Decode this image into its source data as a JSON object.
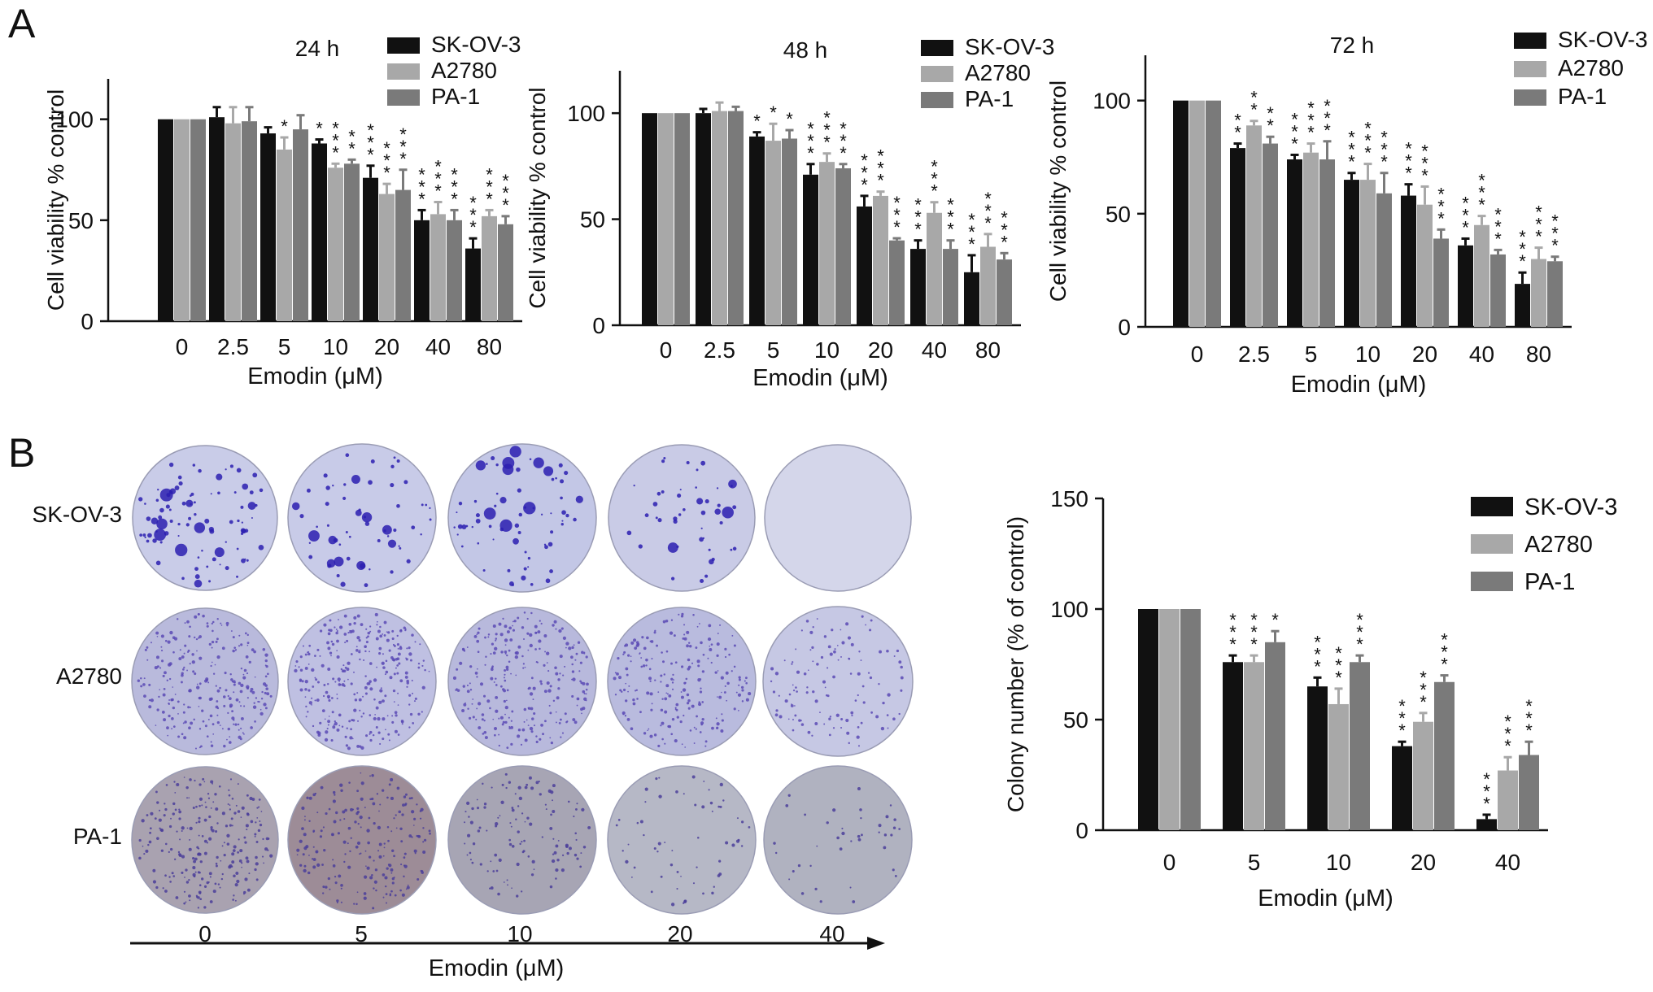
{
  "panels": {
    "a": "A",
    "b": "B"
  },
  "legend": [
    "SK-OV-3",
    "A2780",
    "PA-1"
  ],
  "colors": {
    "SK-OV-3": "#111111",
    "A2780": "#a8a8a8",
    "PA-1": "#7a7a7a"
  },
  "chart_data": [
    {
      "type": "bar",
      "title": "24 h",
      "ylabel": "Cell viability % control",
      "xlabel": "Emodin (μM)",
      "ylim": [
        0,
        120
      ],
      "yticks": [
        0,
        50,
        100
      ],
      "categories": [
        "0",
        "2.5",
        "5",
        "10",
        "20",
        "40",
        "80"
      ],
      "series": [
        {
          "name": "SK-OV-3",
          "values": [
            100,
            101,
            93,
            88,
            71,
            50,
            36
          ],
          "errors": [
            0,
            5,
            3,
            2,
            6,
            5,
            5
          ],
          "stars": [
            "",
            "",
            "",
            "*",
            "***",
            "***",
            "***"
          ]
        },
        {
          "name": "A2780",
          "values": [
            100,
            98,
            85,
            76,
            63,
            53,
            52
          ],
          "errors": [
            0,
            8,
            6,
            2,
            5,
            6,
            3
          ],
          "stars": [
            "",
            "",
            "*",
            "***",
            "***",
            "***",
            "***"
          ]
        },
        {
          "name": "PA-1",
          "values": [
            100,
            99,
            95,
            78,
            65,
            50,
            48
          ],
          "errors": [
            0,
            7,
            7,
            2,
            10,
            5,
            4
          ],
          "stars": [
            "",
            "",
            "",
            "**",
            "***",
            "***",
            "***"
          ]
        }
      ],
      "legend": "top-right"
    },
    {
      "type": "bar",
      "title": "48 h",
      "ylabel": "Cell viability % control",
      "xlabel": "Emodin (μM)",
      "ylim": [
        0,
        120
      ],
      "yticks": [
        0,
        50,
        100
      ],
      "categories": [
        "0",
        "2.5",
        "5",
        "10",
        "20",
        "40",
        "80"
      ],
      "series": [
        {
          "name": "SK-OV-3",
          "values": [
            100,
            100,
            89,
            71,
            56,
            36,
            25
          ],
          "errors": [
            0,
            2,
            2,
            5,
            5,
            4,
            8
          ],
          "stars": [
            "",
            "",
            "*",
            "***",
            "***",
            "***",
            "***"
          ]
        },
        {
          "name": "A2780",
          "values": [
            100,
            101,
            87,
            77,
            61,
            53,
            37
          ],
          "errors": [
            0,
            4,
            8,
            4,
            2,
            5,
            6
          ],
          "stars": [
            "",
            "",
            "*",
            "***",
            "***",
            "***",
            "***"
          ]
        },
        {
          "name": "PA-1",
          "values": [
            100,
            101,
            88,
            74,
            40,
            36,
            31
          ],
          "errors": [
            0,
            2,
            4,
            2,
            1,
            4,
            3
          ],
          "stars": [
            "",
            "",
            "*",
            "***",
            "***",
            "***",
            "***"
          ]
        }
      ],
      "legend": "top-right"
    },
    {
      "type": "bar",
      "title": "72 h",
      "ylabel": "Cell viability % control",
      "xlabel": "Emodin (μM)",
      "ylim": [
        0,
        120
      ],
      "yticks": [
        0,
        50,
        100
      ],
      "categories": [
        "0",
        "2.5",
        "5",
        "10",
        "20",
        "40",
        "80"
      ],
      "series": [
        {
          "name": "SK-OV-3",
          "values": [
            100,
            79,
            74,
            65,
            58,
            36,
            19
          ],
          "errors": [
            0,
            2,
            2,
            3,
            5,
            3,
            5
          ],
          "stars": [
            "",
            "**",
            "***",
            "***",
            "***",
            "***",
            "***"
          ]
        },
        {
          "name": "A2780",
          "values": [
            100,
            89,
            77,
            65,
            54,
            45,
            30
          ],
          "errors": [
            0,
            2,
            4,
            7,
            8,
            4,
            5
          ],
          "stars": [
            "",
            "**",
            "***",
            "***",
            "***",
            "***",
            "***"
          ]
        },
        {
          "name": "PA-1",
          "values": [
            100,
            81,
            74,
            59,
            39,
            32,
            29
          ],
          "errors": [
            0,
            3,
            8,
            9,
            4,
            2,
            2
          ],
          "stars": [
            "",
            "**",
            "***",
            "***",
            "***",
            "***",
            "***"
          ]
        }
      ],
      "legend": "top-right"
    },
    {
      "type": "bar",
      "title": "",
      "ylabel": "Colony number (% of control)",
      "xlabel": "Emodin (μM)",
      "ylim": [
        0,
        150
      ],
      "yticks": [
        0,
        50,
        100,
        150
      ],
      "categories": [
        "0",
        "5",
        "10",
        "20",
        "40"
      ],
      "series": [
        {
          "name": "SK-OV-3",
          "values": [
            100,
            76,
            65,
            38,
            5
          ],
          "errors": [
            0,
            3,
            4,
            2,
            2
          ],
          "stars": [
            "",
            "***",
            "***",
            "***",
            "***"
          ]
        },
        {
          "name": "A2780",
          "values": [
            100,
            76,
            57,
            49,
            27
          ],
          "errors": [
            0,
            3,
            7,
            4,
            6
          ],
          "stars": [
            "",
            "***",
            "***",
            "***",
            "***"
          ]
        },
        {
          "name": "PA-1",
          "values": [
            100,
            85,
            76,
            67,
            34
          ],
          "errors": [
            0,
            5,
            3,
            3,
            6
          ],
          "stars": [
            "",
            "*",
            "***",
            "***",
            "***"
          ]
        }
      ],
      "legend": "top-right"
    }
  ],
  "colony_plates": {
    "rows": [
      "SK-OV-3",
      "A2780",
      "PA-1"
    ],
    "doses": [
      "0",
      "5",
      "10",
      "20",
      "40"
    ],
    "axis_label": "Emodin (μM)"
  }
}
